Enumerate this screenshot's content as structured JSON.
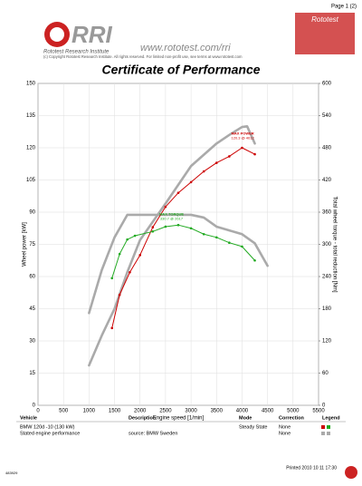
{
  "header": {
    "page": "Page 1 (2)",
    "logo": "RRI",
    "institute": "Rototest Research Institute",
    "url": "www.rototest.com/rri",
    "copyright": "(c) Copyright Rototest Research Institute. All rights reserved. For limited non-profit use, see terms at www.rototest.com",
    "brand": "Rototest"
  },
  "title": "Certificate of Performance",
  "chart_data": {
    "type": "line",
    "xlabel": "Engine speed [1/min]",
    "ylabel": "Wheel power [kW]",
    "y2label": "Total wheel torque - total reduction [Nm]",
    "xlim": [
      0,
      5500
    ],
    "xticks": [
      0,
      500,
      1000,
      1500,
      2000,
      2500,
      3000,
      3500,
      4000,
      4500,
      5000,
      5500
    ],
    "ylim": [
      0,
      150
    ],
    "yticks": [
      0,
      15,
      30,
      45,
      60,
      75,
      90,
      105,
      120,
      135,
      150
    ],
    "y2lim": [
      0,
      600
    ],
    "y2ticks": [
      0,
      60,
      120,
      180,
      240,
      300,
      360,
      420,
      480,
      540,
      600
    ],
    "grid": true,
    "series": [
      {
        "color": "#aaaaaa",
        "x": [
          1000,
          1250,
          1500,
          1750,
          2000,
          2500,
          3000,
          3500,
          3750,
          4000,
          4100,
          4250
        ],
        "values": [
          18.6,
          32.5,
          45,
          62,
          77,
          94,
          111.5,
          122,
          126,
          129.7,
          130,
          122
        ]
      },
      {
        "color": "#aaaaaa",
        "axis": "y2",
        "x": [
          1000,
          1250,
          1500,
          1750,
          2500,
          3000,
          3250,
          3500,
          4000,
          4250,
          4500
        ],
        "values": [
          172,
          252,
          313,
          355,
          355,
          355,
          350,
          333,
          319,
          302,
          260
        ]
      },
      {
        "color": "#cc0000",
        "x": [
          1450,
          1600,
          1800,
          2000,
          2250,
          2500,
          2750,
          3000,
          3250,
          3500,
          3750,
          4000,
          4250
        ],
        "values": [
          36,
          51.5,
          62,
          70,
          83,
          92.5,
          99,
          104,
          109,
          113,
          116,
          120,
          117
        ]
      },
      {
        "color": "#22aa22",
        "axis": "y2",
        "x": [
          1450,
          1600,
          1750,
          1900,
          2250,
          2500,
          2750,
          3000,
          3250,
          3500,
          3750,
          4000,
          4250
        ],
        "values": [
          237,
          282,
          309,
          316,
          324,
          333,
          336,
          330,
          319,
          313,
          303,
          296,
          270
        ]
      }
    ],
    "annotations": [
      {
        "text": "MAX POWER",
        "sub": "120.3 @ 4012",
        "x": 4012,
        "y": 120.3,
        "color": "#cc0000"
      },
      {
        "text": "MAX TORQUE",
        "sub": "330.7 @ 2617",
        "x": 2617,
        "y": 330.7,
        "axis": "y2",
        "color": "#22aa22"
      }
    ]
  },
  "table": {
    "header": [
      "Vehicle",
      "Description",
      "Mode",
      "Correction",
      "Legend"
    ],
    "rows": [
      [
        "BMW 120d -10 (130 kW)",
        "",
        "Steady State",
        "None"
      ],
      [
        "Stated engine performance",
        "source: BMW Sweden",
        "",
        "None"
      ]
    ]
  },
  "footer": {
    "printed": "Printed 2010 10 11 17:30",
    "id": "483929"
  }
}
